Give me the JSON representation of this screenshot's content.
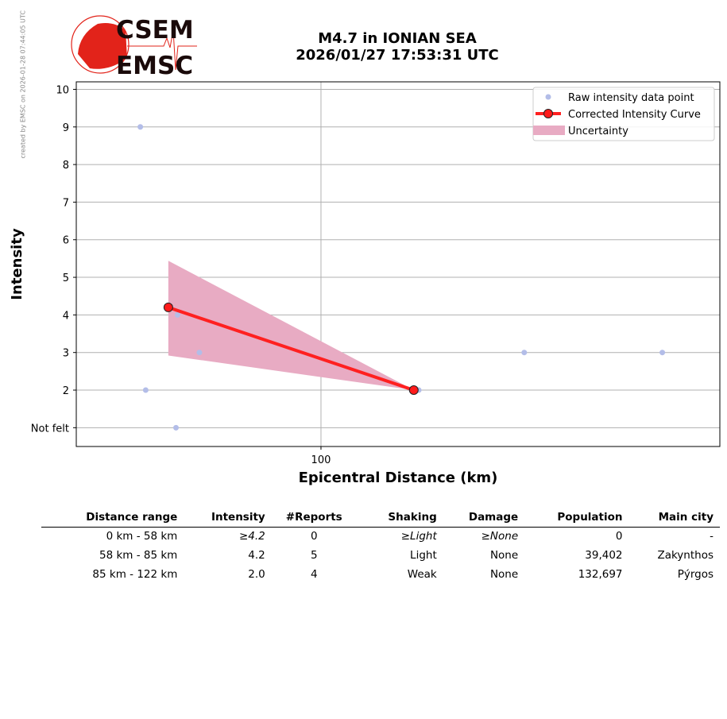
{
  "side_note": "created by EMSC on 2026-01-28 07:44:05 UTC",
  "logo": {
    "top": "CSEM",
    "bottom": "EMSC"
  },
  "title_line1": "M4.7 in IONIAN SEA",
  "title_line2": "2026/01/27 17:53:31 UTC",
  "chart_data": {
    "type": "line",
    "xlabel": "Epicentral Distance (km)",
    "ylabel": "Intensity",
    "xlim": [
      36.2,
      204
    ],
    "ylim": [
      0.5,
      10.2
    ],
    "xticks": [
      {
        "value": 100,
        "label": "100"
      }
    ],
    "yticks": [
      {
        "value": 1,
        "label": "Not felt"
      },
      {
        "value": 2,
        "label": "2"
      },
      {
        "value": 3,
        "label": "3"
      },
      {
        "value": 4,
        "label": "4"
      },
      {
        "value": 5,
        "label": "5"
      },
      {
        "value": 6,
        "label": "6"
      },
      {
        "value": 7,
        "label": "7"
      },
      {
        "value": 8,
        "label": "8"
      },
      {
        "value": 9,
        "label": "9"
      },
      {
        "value": 10,
        "label": "10"
      }
    ],
    "grid": true,
    "legend_position": "top-right",
    "legend": [
      "Raw intensity data point",
      "Corrected Intensity Curve",
      "Uncertainty"
    ],
    "raw_points": [
      {
        "x": 52.9,
        "y": 9
      },
      {
        "x": 54.3,
        "y": 2
      },
      {
        "x": 62.2,
        "y": 1
      },
      {
        "x": 62.6,
        "y": 4
      },
      {
        "x": 68.3,
        "y": 3
      },
      {
        "x": 123.6,
        "y": 2
      },
      {
        "x": 125.5,
        "y": 2
      },
      {
        "x": 153,
        "y": 3
      },
      {
        "x": 189,
        "y": 3
      }
    ],
    "curve": [
      {
        "x": 60.2,
        "y": 4.2
      },
      {
        "x": 124.2,
        "y": 2.0
      }
    ],
    "uncertainty": {
      "x": [
        60.2,
        124.2
      ],
      "upper": [
        5.44,
        2.0
      ],
      "lower": [
        2.92,
        2.0
      ]
    },
    "colors": {
      "raw": "#b3bde8",
      "curve": "#ff2020",
      "marker": "#ff1a1a",
      "band": "#e8abc3",
      "grid": "#b0b0b0"
    }
  },
  "table": {
    "headers": [
      "Distance range",
      "Intensity",
      "#Reports",
      "Shaking",
      "Damage",
      "Population",
      "Main city"
    ],
    "rows": [
      [
        "0 km -   58 km",
        "≥4.2",
        "0",
        "≥Light",
        "≥None",
        "0",
        "-"
      ],
      [
        "58 km -   85 km",
        "4.2",
        "5",
        "Light",
        "None",
        "39,402",
        "Zakynthos"
      ],
      [
        "85 km -  122 km",
        "2.0",
        "4",
        "Weak",
        "None",
        "132,697",
        "Pýrgos"
      ]
    ]
  }
}
